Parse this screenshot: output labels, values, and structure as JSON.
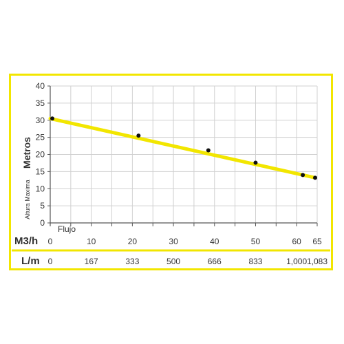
{
  "chart_data": {
    "type": "line",
    "ylabel_main": "Metros",
    "ylabel_sub": "Altura Maxima",
    "x_inside_label": "Flujo",
    "xlabel_m3h": "M3/h",
    "xlabel_lm": "L/m",
    "yticks": [
      "0",
      "5",
      "10",
      "15",
      "20",
      "25",
      "30",
      "35",
      "40"
    ],
    "ylim": [
      0,
      40
    ],
    "xlim": [
      0,
      65
    ],
    "m3h_ticks": [
      {
        "x": 0,
        "label": "0"
      },
      {
        "x": 10,
        "label": "10"
      },
      {
        "x": 20,
        "label": "20"
      },
      {
        "x": 30,
        "label": "30"
      },
      {
        "x": 40,
        "label": "40"
      },
      {
        "x": 50,
        "label": "50"
      },
      {
        "x": 60,
        "label": "60"
      },
      {
        "x": 65,
        "label": "65"
      }
    ],
    "lm_ticks": [
      {
        "x": 0,
        "label": "0"
      },
      {
        "x": 10,
        "label": "167"
      },
      {
        "x": 20,
        "label": "333"
      },
      {
        "x": 30,
        "label": "500"
      },
      {
        "x": 40,
        "label": "666"
      },
      {
        "x": 50,
        "label": "833"
      },
      {
        "x": 60,
        "label": "1,000"
      },
      {
        "x": 65,
        "label": "1,083"
      }
    ],
    "series": [
      {
        "points": [
          {
            "x": 0.5,
            "y": 30.5
          },
          {
            "x": 21.5,
            "y": 25.5
          },
          {
            "x": 38.5,
            "y": 21.2
          },
          {
            "x": 50,
            "y": 17.6
          },
          {
            "x": 61.5,
            "y": 14
          },
          {
            "x": 64.5,
            "y": 13.2
          }
        ],
        "line": [
          {
            "x": 0,
            "y": 30.5
          },
          {
            "x": 64.5,
            "y": 13.2
          }
        ]
      }
    ],
    "grid": true
  },
  "colors": {
    "frame": "#f2e600",
    "curve": "#f2e600",
    "points": "#111111",
    "grid": "#d0d0d0",
    "axis": "#555555",
    "text": "#333333"
  }
}
